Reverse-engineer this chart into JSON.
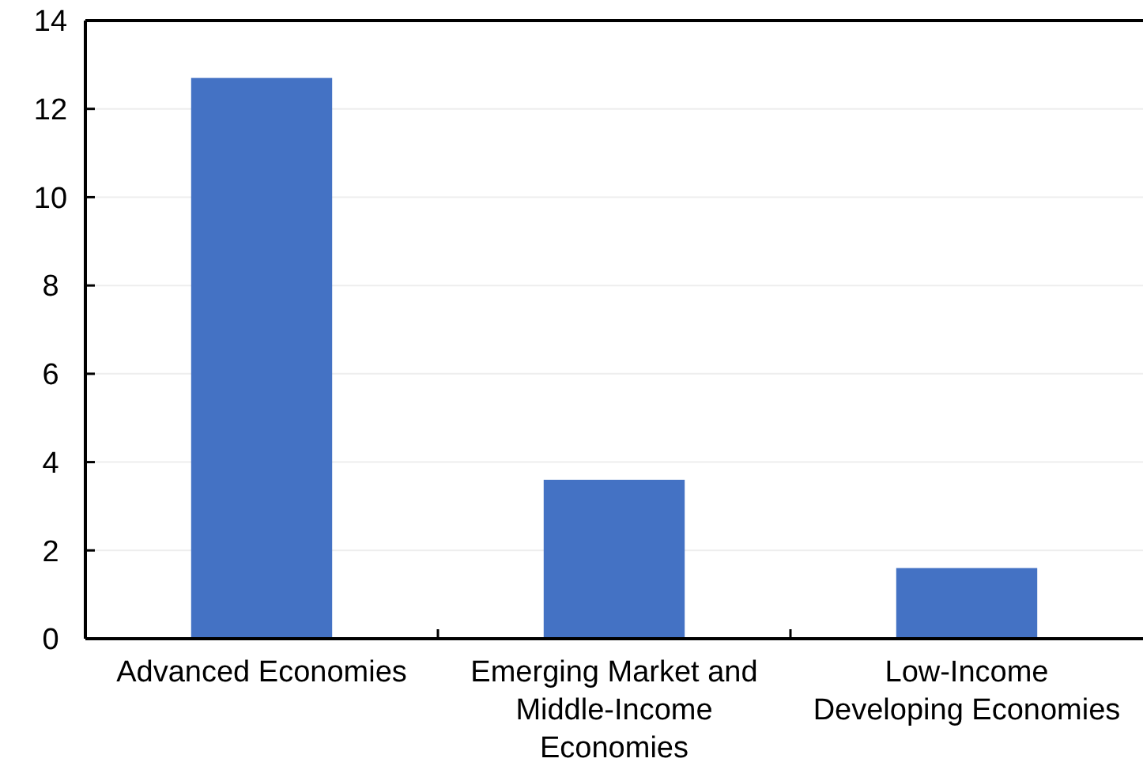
{
  "chart_data": {
    "type": "bar",
    "categories": [
      "Advanced Economies",
      "Emerging Market and Middle-Income Economies",
      "Low-Income Developing Economies"
    ],
    "values": [
      12.7,
      3.6,
      1.6
    ],
    "color": "#4472c4",
    "ylim": [
      0,
      14
    ],
    "yticks": [
      0,
      2,
      4,
      6,
      8,
      10,
      12,
      14
    ],
    "grid": "y"
  }
}
